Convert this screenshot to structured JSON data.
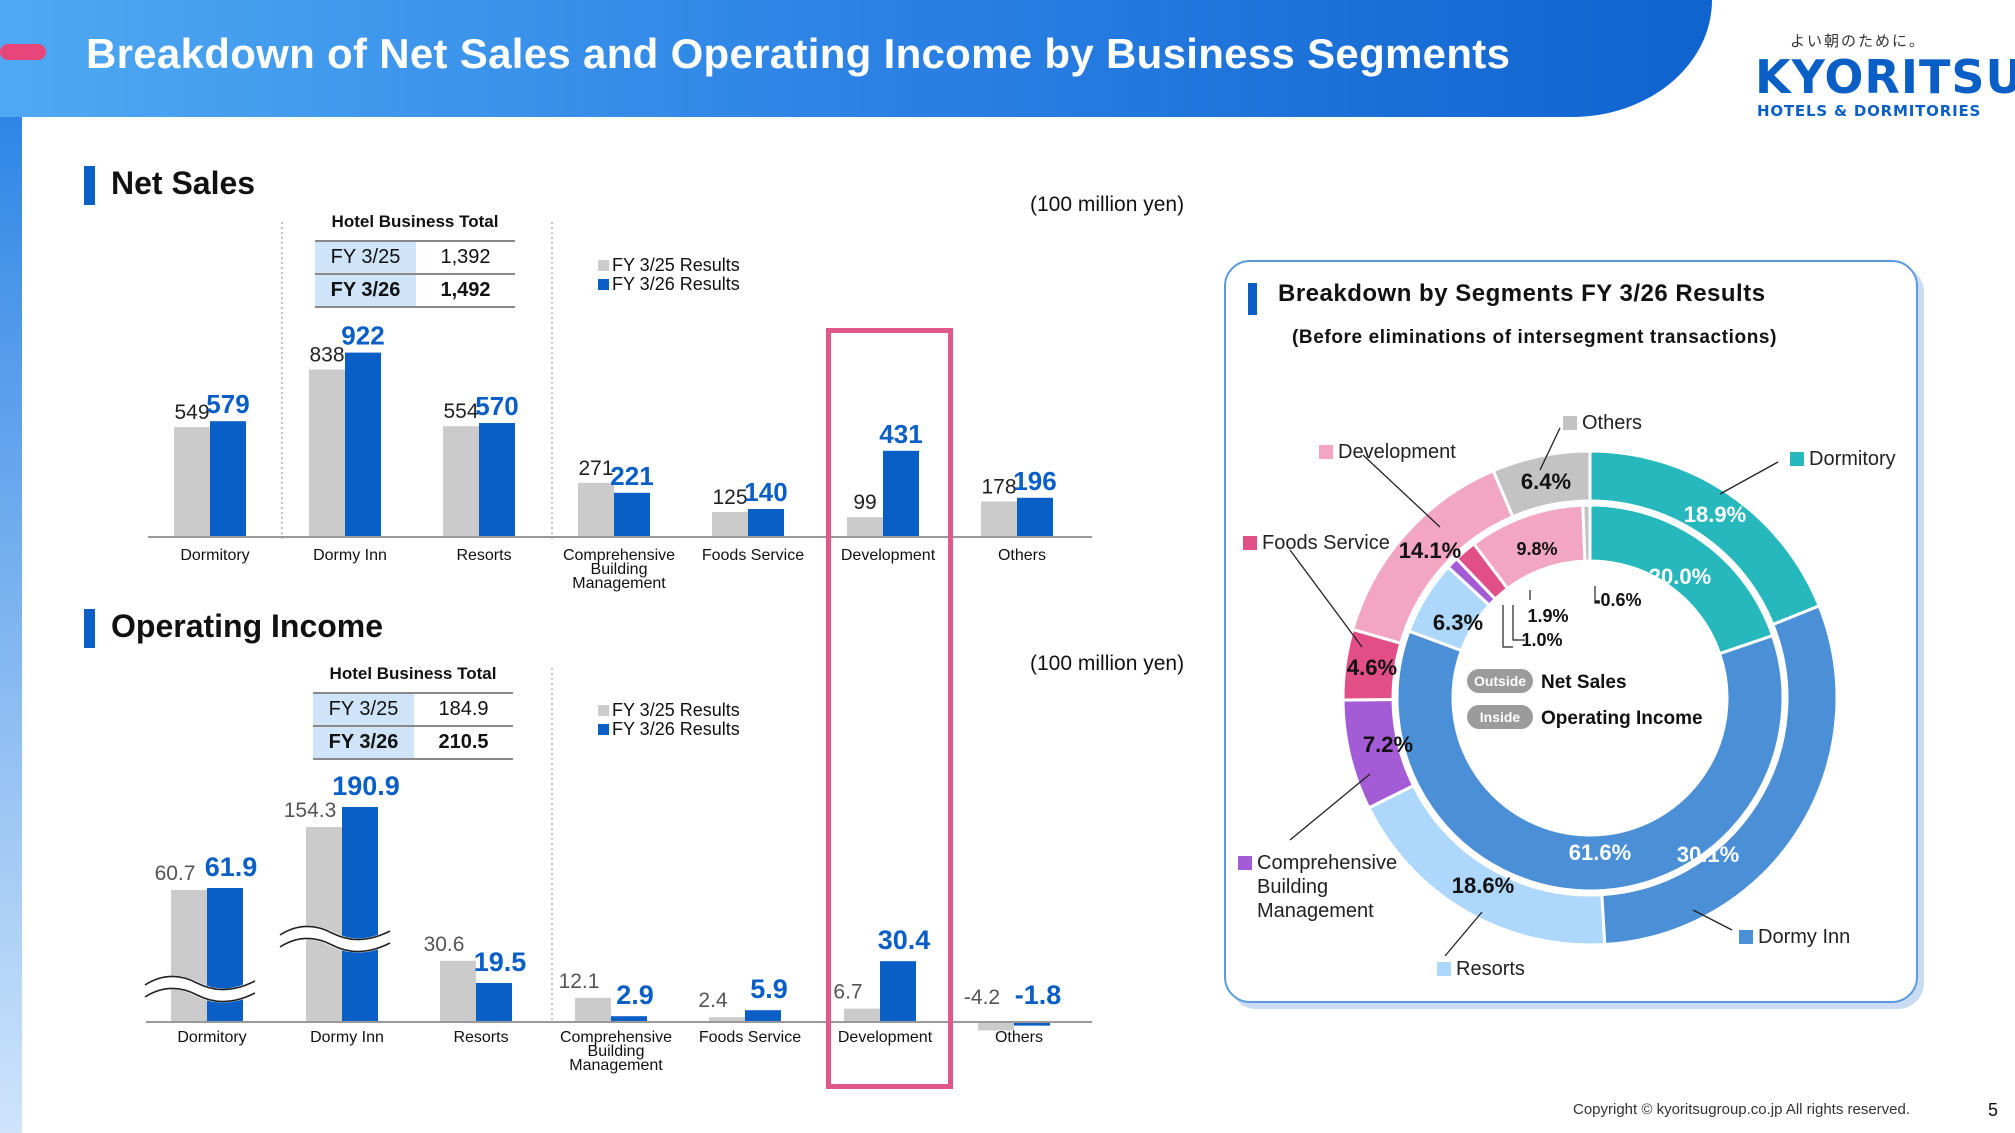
{
  "page": {
    "title": "Breakdown of Net Sales and Operating Income by Business Segments",
    "logo_tagline": "よい朝のために。",
    "logo_brand": "KYORITSU",
    "logo_sub": "HOTELS & DORMITORIES",
    "copyright": "Copyright © kyoritsugroup.co.jp All rights reserved.",
    "page_number": "5",
    "colors": {
      "header": "#2f86e6",
      "accent_pink": "#e8467a",
      "fy25": "#cccbcb",
      "fy26": "#0a5fc6",
      "highlight": "#e0578a"
    }
  },
  "net_sales": {
    "section_title": "Net Sales",
    "unit": "(100 million yen)",
    "hotel_total": {
      "caption": "Hotel Business Total",
      "rows": [
        {
          "label": "FY 3/25",
          "value": "1,392"
        },
        {
          "label": "FY 3/26",
          "value": "1,492"
        }
      ]
    },
    "legend": [
      "FY 3/25 Results",
      "FY 3/26 Results"
    ]
  },
  "operating_income": {
    "section_title": "Operating Income",
    "unit": "(100 million yen)",
    "hotel_total": {
      "caption": "Hotel Business Total",
      "rows": [
        {
          "label": "FY 3/25",
          "value": "184.9"
        },
        {
          "label": "FY 3/26",
          "value": "210.5"
        }
      ]
    },
    "legend": [
      "FY 3/25 Results",
      "FY 3/26 Results"
    ]
  },
  "donut": {
    "title": "Breakdown by Segments FY 3/26 Results",
    "subtitle": "(Before eliminations of intersegment transactions)",
    "center_outside_tag": "Outside",
    "center_outside_label": "Net Sales",
    "center_inside_tag": "Inside",
    "center_inside_label": "Operating Income"
  },
  "chart_data": [
    {
      "type": "bar",
      "title": "Net Sales",
      "unit": "(100 million yen)",
      "categories": [
        "Dormitory",
        "Dormy Inn",
        "Resorts",
        "Comprehensive Building Management",
        "Foods Service",
        "Development",
        "Others"
      ],
      "series": [
        {
          "name": "FY 3/25 Results",
          "values": [
            549,
            838,
            554,
            271,
            125,
            99,
            178
          ]
        },
        {
          "name": "FY 3/26 Results",
          "values": [
            579,
            922,
            570,
            221,
            140,
            431,
            196
          ]
        }
      ],
      "value_labels": {
        "fy25": [
          "549",
          "838",
          "554",
          "271",
          "125",
          "99",
          "178"
        ],
        "fy26": [
          "579",
          "922",
          "570",
          "221",
          "140",
          "431",
          "196"
        ]
      },
      "ylim": [
        0,
        1000
      ],
      "grid": false,
      "legend": "top-center"
    },
    {
      "type": "bar",
      "title": "Operating Income",
      "unit": "(100 million yen)",
      "categories": [
        "Dormitory",
        "Dormy Inn",
        "Resorts",
        "Comprehensive Building Management",
        "Foods Service",
        "Development",
        "Others"
      ],
      "series": [
        {
          "name": "FY 3/25 Results",
          "values": [
            60.7,
            154.3,
            30.6,
            12.1,
            2.4,
            6.7,
            -4.2
          ]
        },
        {
          "name": "FY 3/26 Results",
          "values": [
            61.9,
            190.9,
            19.5,
            2.9,
            5.9,
            30.4,
            -1.8
          ]
        }
      ],
      "value_labels": {
        "fy25": [
          "60.7",
          "154.3",
          "30.6",
          "12.1",
          "2.4",
          "6.7",
          "-4.2"
        ],
        "fy26": [
          "61.9",
          "190.9",
          "19.5",
          "2.9",
          "5.9",
          "30.4",
          "-1.8"
        ]
      },
      "axis_break_categories": [
        "Dormitory",
        "Dormy Inn"
      ],
      "grid": false,
      "legend": "top-center"
    },
    {
      "type": "pie",
      "ring": "outer",
      "title": "Net Sales",
      "labels": [
        "Dormitory",
        "Dormy Inn",
        "Resorts",
        "Comprehensive Building Management",
        "Foods Service",
        "Development",
        "Others"
      ],
      "values": [
        18.9,
        30.1,
        18.6,
        7.2,
        4.6,
        14.1,
        6.4
      ],
      "value_labels": [
        "18.9%",
        "30.1%",
        "18.6%",
        "7.2%",
        "4.6%",
        "14.1%",
        "6.4%"
      ],
      "colors": [
        "#27b8bd",
        "#4b8fd6",
        "#aed8fb",
        "#a45bd6",
        "#e24e86",
        "#f2a6c1",
        "#c3c3c3"
      ]
    },
    {
      "type": "pie",
      "ring": "inner",
      "title": "Operating Income",
      "labels": [
        "Dormitory",
        "Dormy Inn",
        "Resorts",
        "Comprehensive Building Management",
        "Foods Service",
        "Development",
        "Others"
      ],
      "values": [
        20.0,
        61.6,
        6.3,
        1.0,
        1.9,
        9.8,
        -0.6
      ],
      "value_labels": [
        "20.0%",
        "61.6%",
        "6.3%",
        "1.0%",
        "1.9%",
        "9.8%",
        "-0.6%"
      ],
      "colors": [
        "#27b8bd",
        "#4b8fd6",
        "#aed8fb",
        "#a45bd6",
        "#e24e86",
        "#f2a6c1",
        "#c3c3c3"
      ]
    }
  ]
}
